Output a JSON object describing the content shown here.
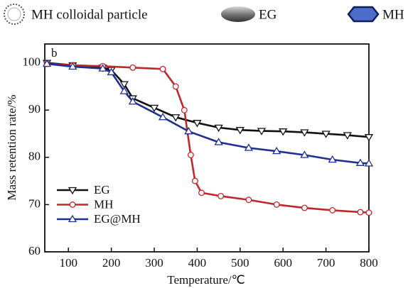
{
  "chart_data": {
    "type": "line",
    "top_legend": [
      "MH colloidal particle",
      "EG",
      "MH"
    ],
    "panel_label": "b",
    "x_label": "Temperature/℃",
    "y_label": "Mass retention rate/%",
    "xlim": [
      45,
      800
    ],
    "xticks": [
      100,
      200,
      300,
      400,
      500,
      600,
      700,
      800
    ],
    "ylim": [
      60,
      104
    ],
    "yticks": [
      60,
      70,
      80,
      90,
      100
    ],
    "series": [
      {
        "name": "EG",
        "color": "#111111",
        "marker": "triangle-down",
        "x": [
          50,
          110,
          180,
          200,
          230,
          250,
          300,
          350,
          400,
          450,
          500,
          550,
          600,
          650,
          700,
          750,
          800
        ],
        "values": [
          100,
          99.5,
          99,
          98.5,
          95.5,
          92.5,
          90.5,
          88.5,
          87.3,
          86.3,
          85.8,
          85.6,
          85.5,
          85.3,
          85,
          84.7,
          84.3
        ]
      },
      {
        "name": "MH",
        "color": "#c0272d",
        "marker": "circle",
        "x": [
          50,
          110,
          180,
          250,
          320,
          350,
          370,
          385,
          395,
          410,
          455,
          520,
          585,
          650,
          715,
          780,
          800
        ],
        "values": [
          99.8,
          99.5,
          99.3,
          99,
          98.7,
          95,
          90,
          80.5,
          75,
          72.5,
          71.8,
          71,
          70,
          69.3,
          68.8,
          68.4,
          68.3
        ]
      },
      {
        "name": "EG@MH",
        "color": "#1f2f8f",
        "marker": "triangle-up",
        "x": [
          50,
          110,
          180,
          200,
          230,
          250,
          320,
          380,
          450,
          520,
          585,
          650,
          715,
          780,
          800
        ],
        "values": [
          99.8,
          99.2,
          98.8,
          98,
          94,
          91.8,
          88.5,
          85.5,
          83.2,
          82,
          81.3,
          80.5,
          79.5,
          78.8,
          78.7
        ]
      }
    ]
  }
}
